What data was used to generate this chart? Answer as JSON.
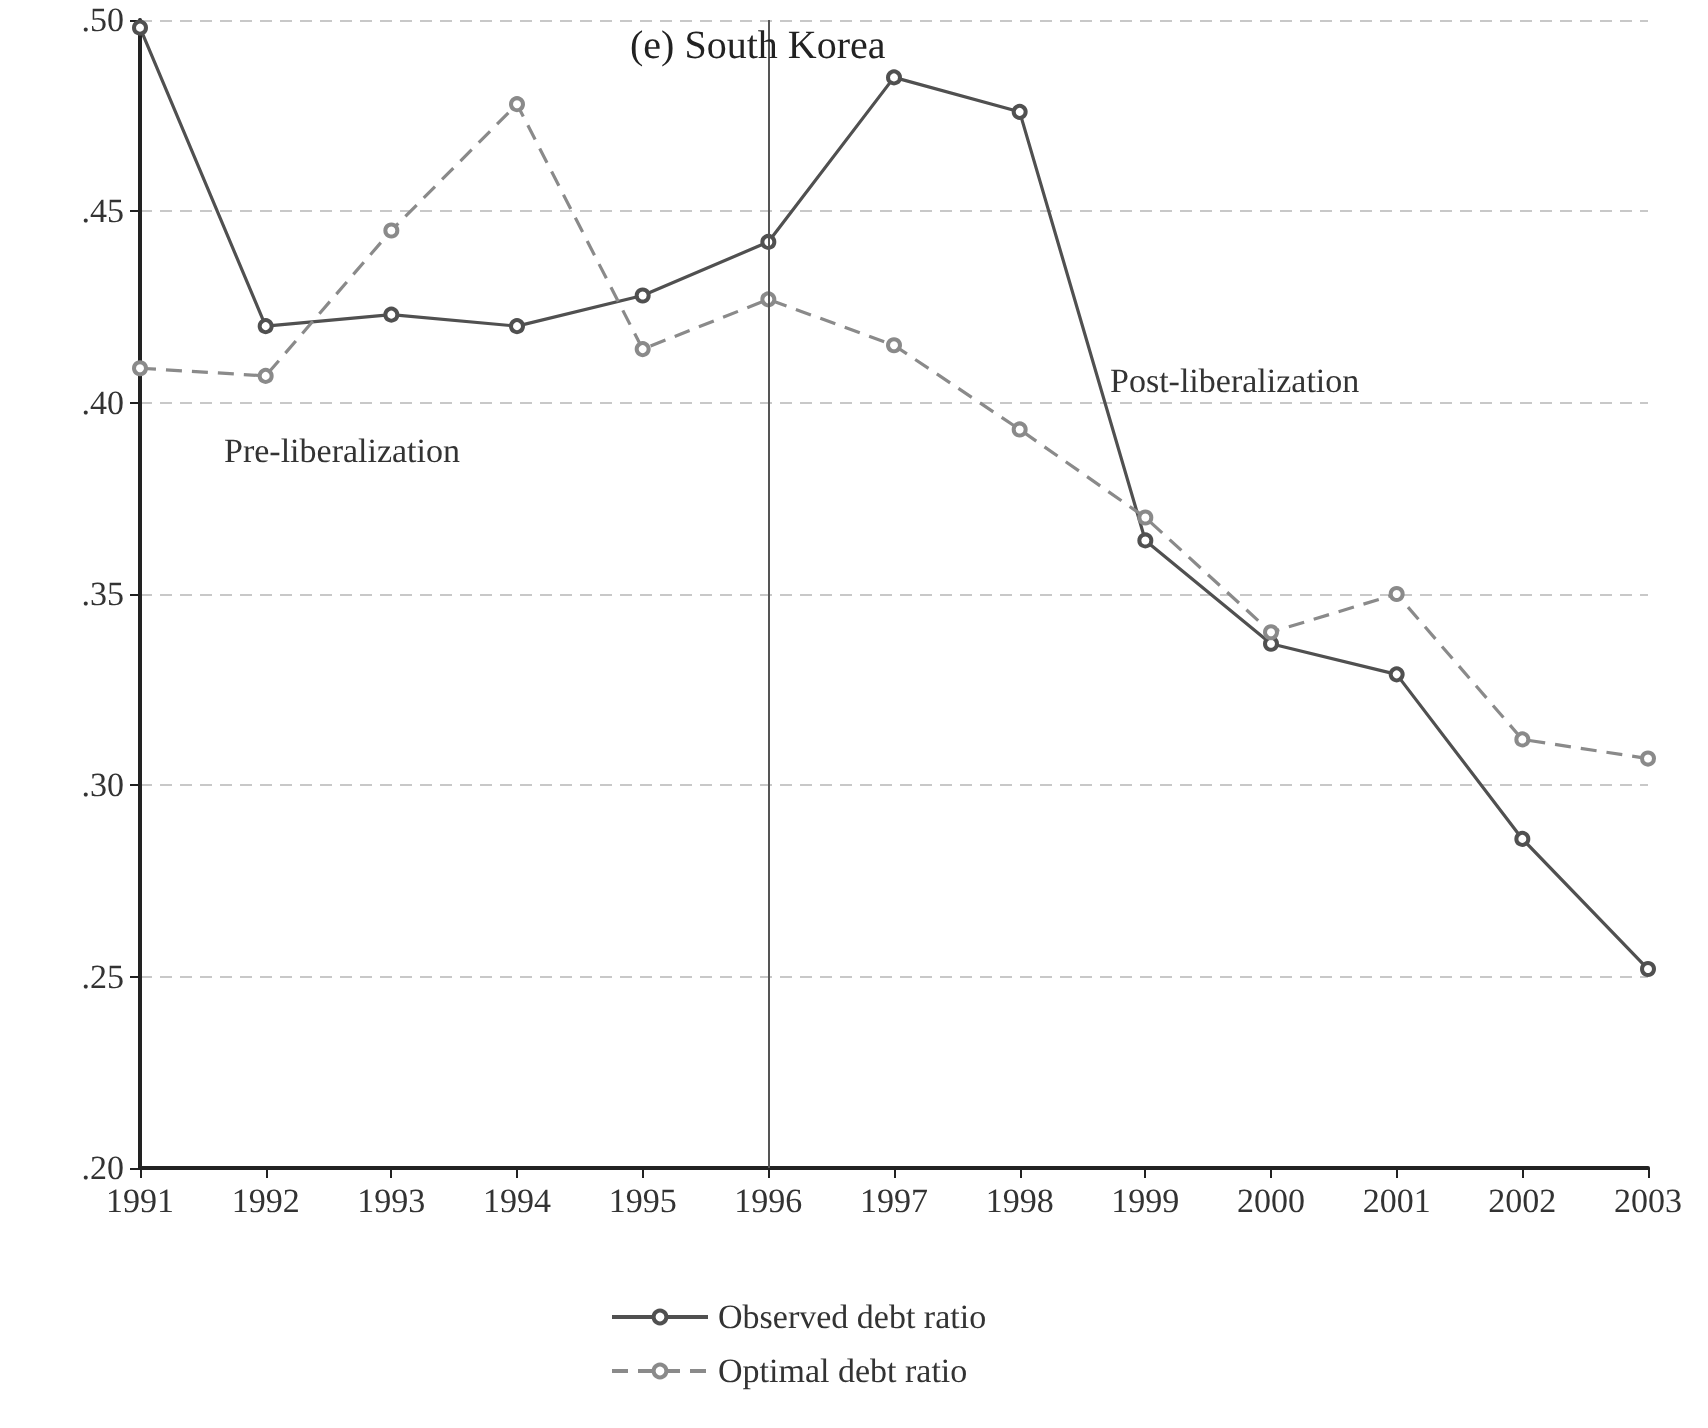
{
  "chart_data": {
    "type": "line",
    "title": "(e) South Korea",
    "categories": [
      "1991",
      "1992",
      "1993",
      "1994",
      "1995",
      "1996",
      "1997",
      "1998",
      "1999",
      "2000",
      "2001",
      "2002",
      "2003"
    ],
    "series": [
      {
        "name": "Observed debt ratio",
        "color": "#505050",
        "line_style": "solid",
        "values": [
          0.498,
          0.42,
          0.423,
          0.42,
          0.428,
          0.442,
          0.485,
          0.476,
          0.364,
          0.337,
          0.329,
          0.286,
          0.252
        ]
      },
      {
        "name": "Optimal debt ratio",
        "color": "#8a8a8a",
        "line_style": "dashed",
        "values": [
          0.409,
          0.407,
          0.445,
          0.478,
          0.414,
          0.427,
          0.415,
          0.393,
          0.37,
          0.34,
          0.35,
          0.312,
          0.307
        ]
      }
    ],
    "ylim": [
      0.2,
      0.5
    ],
    "yticks": [
      {
        "value": 0.2,
        "label": ".20"
      },
      {
        "value": 0.25,
        "label": ".25"
      },
      {
        "value": 0.3,
        "label": ".30"
      },
      {
        "value": 0.35,
        "label": ".35"
      },
      {
        "value": 0.4,
        "label": ".40"
      },
      {
        "value": 0.45,
        "label": ".45"
      },
      {
        "value": 0.5,
        "label": ".50"
      }
    ],
    "ref_lines": [
      {
        "axis": "x",
        "value": "1996",
        "color": "#555555",
        "line_style": "solid"
      }
    ],
    "annotations": [
      "Pre-liberalization",
      "Post-liberalization"
    ],
    "grid": "y",
    "legend": "bottom",
    "marker": "circle"
  }
}
